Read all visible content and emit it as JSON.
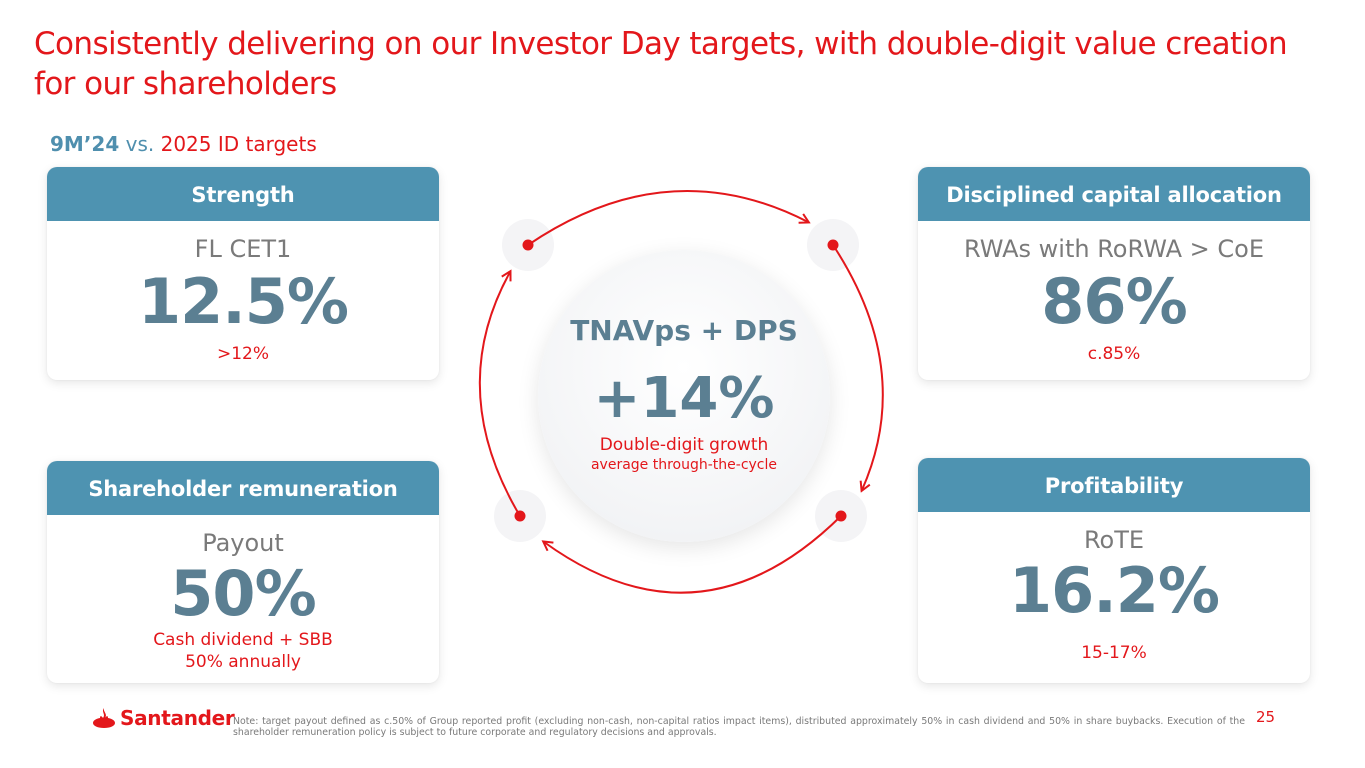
{
  "title": "Consistently delivering on our Investor Day targets, with double-digit value creation for our shareholders",
  "subtitle": {
    "period": "9M’24",
    "vs": "vs.",
    "targets": "2025 ID targets"
  },
  "cards": {
    "strength": {
      "header": "Strength",
      "label": "FL CET1",
      "value": "12.5%",
      "target": ">12%"
    },
    "capital": {
      "header": "Disciplined capital allocation",
      "label": "RWAs with RoRWA > CoE",
      "value": "86%",
      "target": "c.85%"
    },
    "remuneration": {
      "header": "Shareholder remuneration",
      "label": "Payout",
      "value": "50%",
      "target_line1": "Cash dividend + SBB",
      "target_line2": "50% annually"
    },
    "profitability": {
      "header": "Profitability",
      "label": "RoTE",
      "value": "16.2%",
      "target": "15-17%"
    }
  },
  "center": {
    "title": "TNAVps + DPS",
    "value": "+14%",
    "sub1": "Double-digit growth",
    "sub2": "average through-the-cycle"
  },
  "footer": {
    "brand": "Santander",
    "note": "Note: target payout defined as c.50% of Group reported profit (excluding non-cash, non-capital ratios impact items), distributed approximately 50% in cash dividend and 50% in share buybacks. Execution of the shareholder remuneration policy is subject to future corporate and regulatory decisions and approvals.",
    "page": "25"
  },
  "colors": {
    "brand_red": "#e3171b",
    "header_blue": "#4e93b1",
    "value_slate": "#5b7f92"
  }
}
